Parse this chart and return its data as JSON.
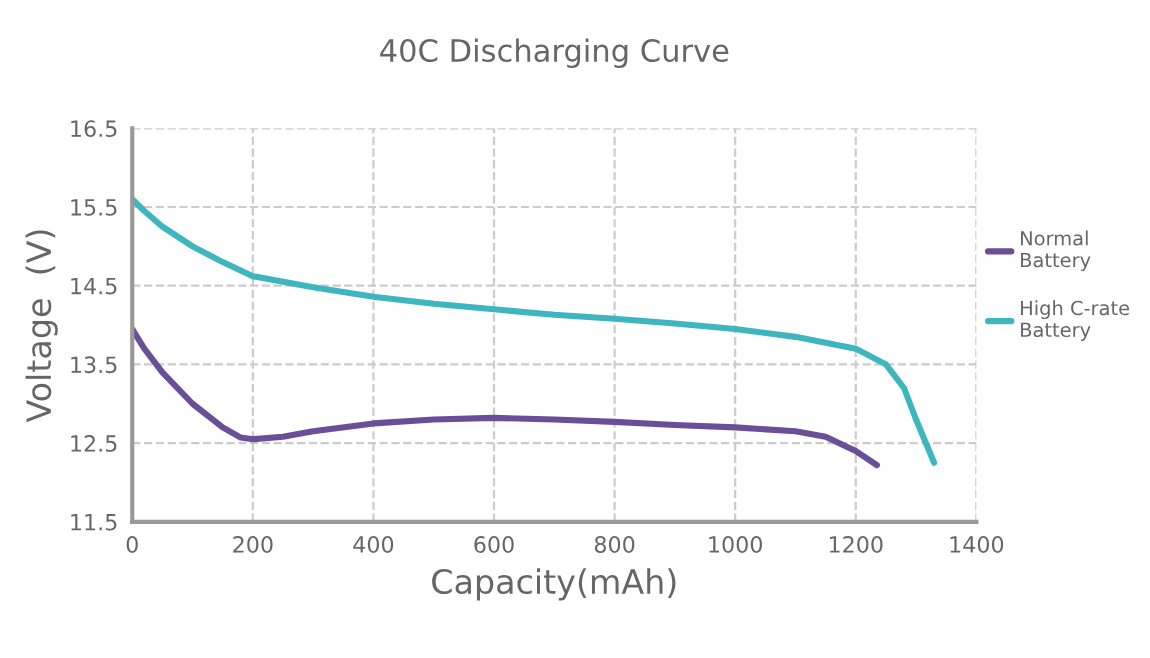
{
  "chart_data": {
    "type": "line",
    "title": "40C Discharging Curve",
    "xlabel": "Capacity(mAh)",
    "ylabel": "Voltage  (V)",
    "xlim": [
      0,
      1400
    ],
    "xticks": [
      0,
      200,
      400,
      600,
      800,
      1000,
      1200,
      1400
    ],
    "ylim": [
      11.5,
      16.5
    ],
    "yticks": [
      11.5,
      12.5,
      13.5,
      14.5,
      15.5,
      16.5
    ],
    "grid": true,
    "legend": "right",
    "marker": "none",
    "line_style": "solid",
    "series": [
      {
        "name": "Normal Battery",
        "color": "#6a4f98",
        "x": [
          0,
          20,
          50,
          100,
          150,
          180,
          200,
          250,
          300,
          400,
          500,
          600,
          700,
          800,
          900,
          1000,
          1100,
          1150,
          1200,
          1235
        ],
        "values": [
          13.95,
          13.7,
          13.4,
          13.0,
          12.7,
          12.57,
          12.55,
          12.58,
          12.65,
          12.75,
          12.8,
          12.82,
          12.8,
          12.77,
          12.73,
          12.7,
          12.65,
          12.58,
          12.4,
          12.22
        ]
      },
      {
        "name": "High C-rate Battery",
        "color": "#3db6c0",
        "x": [
          0,
          20,
          50,
          100,
          150,
          200,
          300,
          400,
          500,
          600,
          700,
          800,
          900,
          1000,
          1100,
          1200,
          1250,
          1280,
          1300,
          1330
        ],
        "values": [
          15.6,
          15.45,
          15.25,
          15.0,
          14.8,
          14.62,
          14.48,
          14.36,
          14.27,
          14.2,
          14.13,
          14.08,
          14.02,
          13.95,
          13.85,
          13.7,
          13.5,
          13.2,
          12.8,
          12.25
        ]
      }
    ]
  }
}
